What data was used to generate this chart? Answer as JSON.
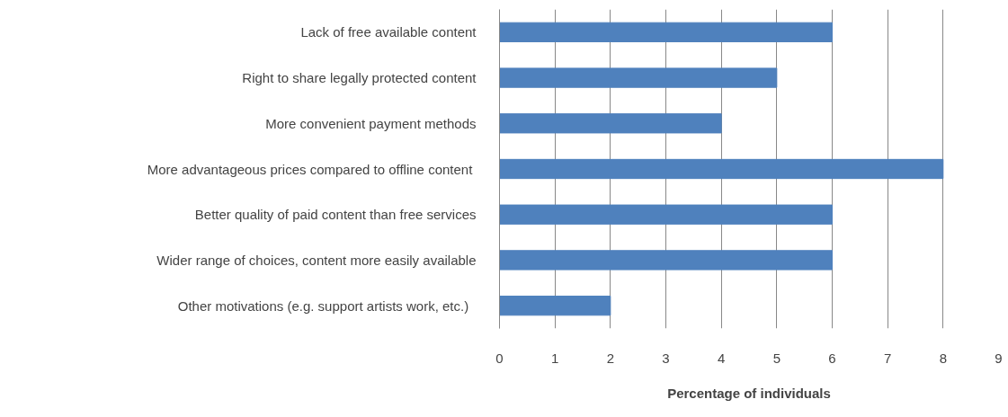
{
  "chart_data": {
    "type": "bar",
    "orientation": "horizontal",
    "xlabel": "Percentage of individuals",
    "categories": [
      "Lack of free available content",
      "Right to share legally protected content",
      "More convenient payment methods",
      "More advantageous  prices compared to offline content",
      "Better quality of paid content than free services",
      "Wider range of choices, content more easily available",
      "Other motivations  (e.g. support artists  work, etc.)"
    ],
    "values": [
      6,
      5,
      4,
      8,
      6,
      6,
      2
    ],
    "color": "#4f81bd",
    "xlim": [
      0,
      9
    ],
    "xticks": [
      0,
      1,
      2,
      3,
      4,
      5,
      6,
      7,
      8,
      9
    ],
    "grid": "x"
  }
}
